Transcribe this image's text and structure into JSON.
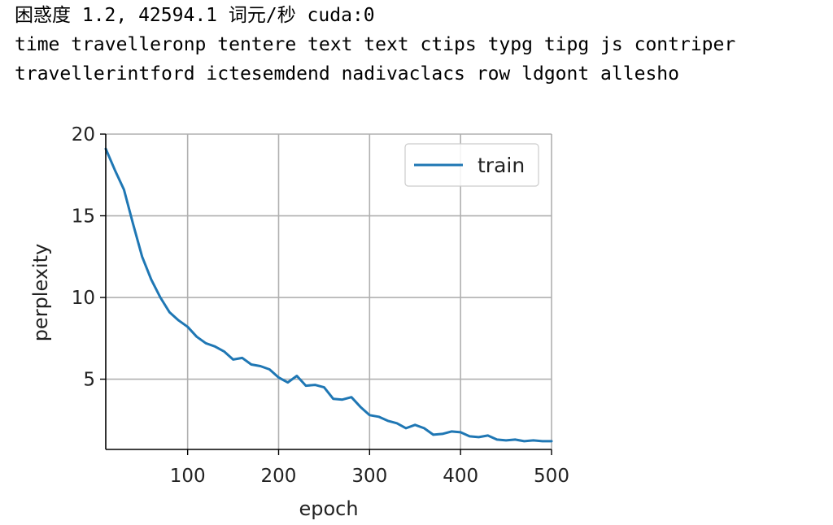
{
  "output": {
    "line1": "困惑度 1.2, 42594.1 词元/秒 cuda:0",
    "line2": "time travelleronp tentere text text ctips typg tipg js contriper",
    "line3": "travellerintford ictesemdend nadivaclacs row ldgont allesho"
  },
  "chart_data": {
    "type": "line",
    "xlabel": "epoch",
    "ylabel": "perplexity",
    "xlim": [
      10,
      500
    ],
    "ylim": [
      0.7,
      20
    ],
    "xticks": [
      100,
      200,
      300,
      400,
      500
    ],
    "yticks": [
      5,
      10,
      15,
      20
    ],
    "grid": true,
    "legend_position": "top-right",
    "series": [
      {
        "name": "train",
        "color": "#1f77b4",
        "x": [
          10,
          20,
          30,
          40,
          50,
          60,
          70,
          80,
          90,
          100,
          110,
          120,
          130,
          140,
          150,
          160,
          170,
          180,
          190,
          200,
          210,
          220,
          230,
          240,
          250,
          260,
          270,
          280,
          290,
          300,
          310,
          320,
          330,
          340,
          350,
          360,
          370,
          380,
          390,
          400,
          410,
          420,
          430,
          440,
          450,
          460,
          470,
          480,
          490,
          500
        ],
        "y": [
          19.1,
          17.8,
          16.6,
          14.5,
          12.5,
          11.1,
          10.0,
          9.1,
          8.6,
          8.2,
          7.6,
          7.2,
          7.0,
          6.7,
          6.2,
          6.3,
          5.9,
          5.8,
          5.6,
          5.1,
          4.8,
          5.2,
          4.6,
          4.65,
          4.5,
          3.8,
          3.75,
          3.9,
          3.3,
          2.8,
          2.7,
          2.45,
          2.3,
          2.0,
          2.2,
          2.0,
          1.6,
          1.65,
          1.8,
          1.75,
          1.5,
          1.45,
          1.55,
          1.3,
          1.25,
          1.3,
          1.2,
          1.25,
          1.2,
          1.2
        ]
      }
    ]
  }
}
